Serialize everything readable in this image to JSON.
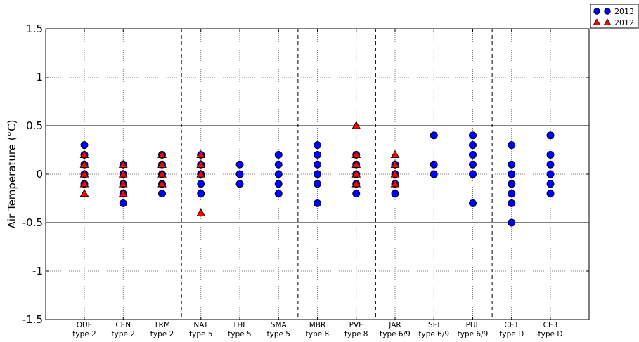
{
  "chart_data": {
    "type": "scatter",
    "title": "",
    "xlabel": "",
    "ylabel": "Air Temperature (°C)",
    "ylim": [
      -1.5,
      1.5
    ],
    "yticks": [
      -1.5,
      -1,
      -0.5,
      0,
      0.5,
      1,
      1.5
    ],
    "ytick_labels": [
      "-1.5",
      "-1",
      "-0.5",
      "0",
      "0.5",
      "1",
      "1.5"
    ],
    "categories": [
      {
        "code": "OUE",
        "type": "type 2"
      },
      {
        "code": "CEN",
        "type": "type 2"
      },
      {
        "code": "TRM",
        "type": "type 2"
      },
      {
        "code": "NAT",
        "type": "type 5"
      },
      {
        "code": "THL",
        "type": "type 5"
      },
      {
        "code": "SMA",
        "type": "type 5"
      },
      {
        "code": "MBR",
        "type": "type 8"
      },
      {
        "code": "PVE",
        "type": "type 8"
      },
      {
        "code": "JAR",
        "type": "type 6/9"
      },
      {
        "code": "SEI",
        "type": "type 6/9"
      },
      {
        "code": "PUL",
        "type": "type 6/9"
      },
      {
        "code": "CE1",
        "type": "type D"
      },
      {
        "code": "CE3",
        "type": "type D"
      }
    ],
    "group_separators_after_index": [
      2,
      5,
      7,
      10
    ],
    "reference_lines": [
      0.5,
      -0.5
    ],
    "grid": true,
    "legend_position": "top-right, outside plot",
    "series": [
      {
        "name": "2013",
        "marker": "circle",
        "color": "#0000ff",
        "values": [
          [
            0.3,
            0.2,
            0.1,
            0.0,
            -0.1
          ],
          [
            0.1,
            0.0,
            -0.1,
            -0.2,
            -0.3
          ],
          [
            0.2,
            0.1,
            0.0,
            -0.1,
            -0.2
          ],
          [
            0.2,
            0.1,
            0.0,
            -0.1,
            -0.2
          ],
          [
            0.1,
            0.0,
            -0.1
          ],
          [
            0.2,
            0.1,
            0.0,
            -0.1,
            -0.2
          ],
          [
            0.3,
            0.2,
            0.1,
            0.0,
            -0.1,
            -0.3
          ],
          [
            0.2,
            0.1,
            0.0,
            -0.1,
            -0.2
          ],
          [
            0.1,
            0.0,
            -0.1,
            -0.2
          ],
          [
            0.4,
            0.1,
            0.0
          ],
          [
            0.4,
            0.3,
            0.2,
            0.1,
            0.0,
            -0.3
          ],
          [
            0.3,
            0.1,
            0.0,
            -0.1,
            -0.2,
            -0.3,
            -0.5
          ],
          [
            0.4,
            0.2,
            0.1,
            0.0,
            -0.1,
            -0.2
          ]
        ]
      },
      {
        "name": "2012",
        "marker": "triangle",
        "color": "#ff0000",
        "values": [
          [
            0.2,
            0.1,
            0.0,
            -0.1,
            -0.2
          ],
          [
            0.1,
            0.0,
            -0.1,
            -0.2
          ],
          [
            0.2,
            0.1,
            0.0,
            -0.1
          ],
          [
            0.2,
            0.1,
            0.0,
            -0.4
          ],
          [],
          [],
          [],
          [
            0.5,
            0.2,
            0.1,
            0.0,
            -0.1
          ],
          [
            0.2,
            0.1,
            0.0,
            -0.1
          ],
          [],
          [],
          [],
          []
        ]
      }
    ],
    "colors": {
      "circle": "#0000ff",
      "triangle": "#ff0000",
      "edge": "#000000"
    }
  }
}
